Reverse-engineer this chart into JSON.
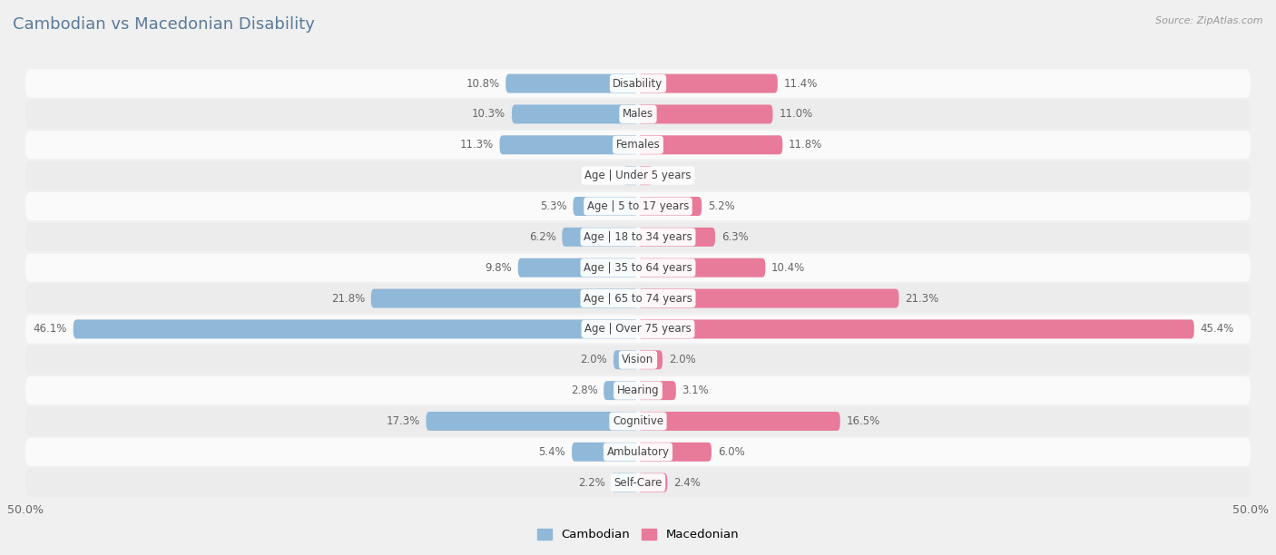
{
  "title": "Cambodian vs Macedonian Disability",
  "source": "Source: ZipAtlas.com",
  "categories": [
    "Disability",
    "Males",
    "Females",
    "Age | Under 5 years",
    "Age | 5 to 17 years",
    "Age | 18 to 34 years",
    "Age | 35 to 64 years",
    "Age | 65 to 74 years",
    "Age | Over 75 years",
    "Vision",
    "Hearing",
    "Cognitive",
    "Ambulatory",
    "Self-Care"
  ],
  "cambodian": [
    10.8,
    10.3,
    11.3,
    1.2,
    5.3,
    6.2,
    9.8,
    21.8,
    46.1,
    2.0,
    2.8,
    17.3,
    5.4,
    2.2
  ],
  "macedonian": [
    11.4,
    11.0,
    11.8,
    1.2,
    5.2,
    6.3,
    10.4,
    21.3,
    45.4,
    2.0,
    3.1,
    16.5,
    6.0,
    2.4
  ],
  "cambodian_color": "#90b8d8",
  "macedonian_color": "#e87a9a",
  "axis_max": 50.0,
  "background_color": "#f0f0f0",
  "row_bg_light": "#fafafa",
  "row_bg_dark": "#ececec",
  "legend_cambodian": "Cambodian",
  "legend_macedonian": "Macedonian",
  "title_color": "#5a7a9a",
  "title_fontsize": 13,
  "label_fontsize": 8.5,
  "value_fontsize": 8.5
}
